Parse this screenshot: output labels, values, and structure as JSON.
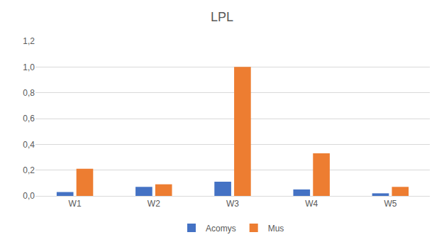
{
  "chart_data": {
    "type": "bar",
    "title": "LPL",
    "categories": [
      "W1",
      "W2",
      "W3",
      "W4",
      "W5"
    ],
    "series": [
      {
        "name": "Acomys",
        "color": "#4472c4",
        "values": [
          0.03,
          0.07,
          0.11,
          0.05,
          0.02
        ]
      },
      {
        "name": "Mus",
        "color": "#ed7d31",
        "values": [
          0.21,
          0.09,
          1.0,
          0.33,
          0.07
        ]
      }
    ],
    "ylim": [
      0,
      1.2
    ],
    "yticks": [
      {
        "value": 0,
        "label": "0,0"
      },
      {
        "value": 0.2,
        "label": "0,2"
      },
      {
        "value": 0.4,
        "label": "0,4"
      },
      {
        "value": 0.6,
        "label": "0,6"
      },
      {
        "value": 0.8,
        "label": "0,8"
      },
      {
        "value": 1.0,
        "label": "1,0"
      },
      {
        "value": 1.2,
        "label": "1,2"
      }
    ],
    "grid": true,
    "legend": "bottom"
  }
}
